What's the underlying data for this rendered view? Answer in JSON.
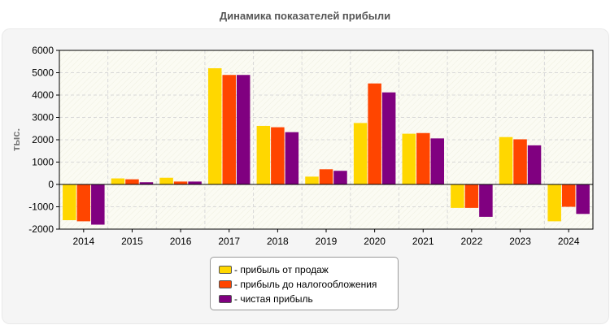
{
  "chart_data": {
    "type": "bar",
    "title": "Динамика показателей прибыли",
    "ylabel": "тыс.",
    "xlabel": "",
    "ylim": [
      -2000,
      6000
    ],
    "yticks": [
      -2000,
      -1000,
      0,
      1000,
      2000,
      3000,
      4000,
      5000,
      6000
    ],
    "grid": true,
    "legend_position": "bottom-center",
    "categories": [
      "2014",
      "2015",
      "2016",
      "2017",
      "2018",
      "2019",
      "2020",
      "2021",
      "2022",
      "2023",
      "2024"
    ],
    "series": [
      {
        "name": "- прибыль от продаж",
        "color": "#ffd700",
        "values": [
          -1600,
          270,
          300,
          5200,
          2620,
          350,
          2750,
          2270,
          -1050,
          2120,
          -1650
        ]
      },
      {
        "name": "- прибыль до налогообложения",
        "color": "#ff4500",
        "values": [
          -1650,
          230,
          130,
          4900,
          2560,
          680,
          4520,
          2300,
          -1050,
          2020,
          -1000
        ]
      },
      {
        "name": "- чистая прибыль",
        "color": "#800080",
        "values": [
          -1800,
          100,
          130,
          4900,
          2340,
          610,
          4120,
          2060,
          -1450,
          1750,
          -1320
        ]
      }
    ]
  }
}
